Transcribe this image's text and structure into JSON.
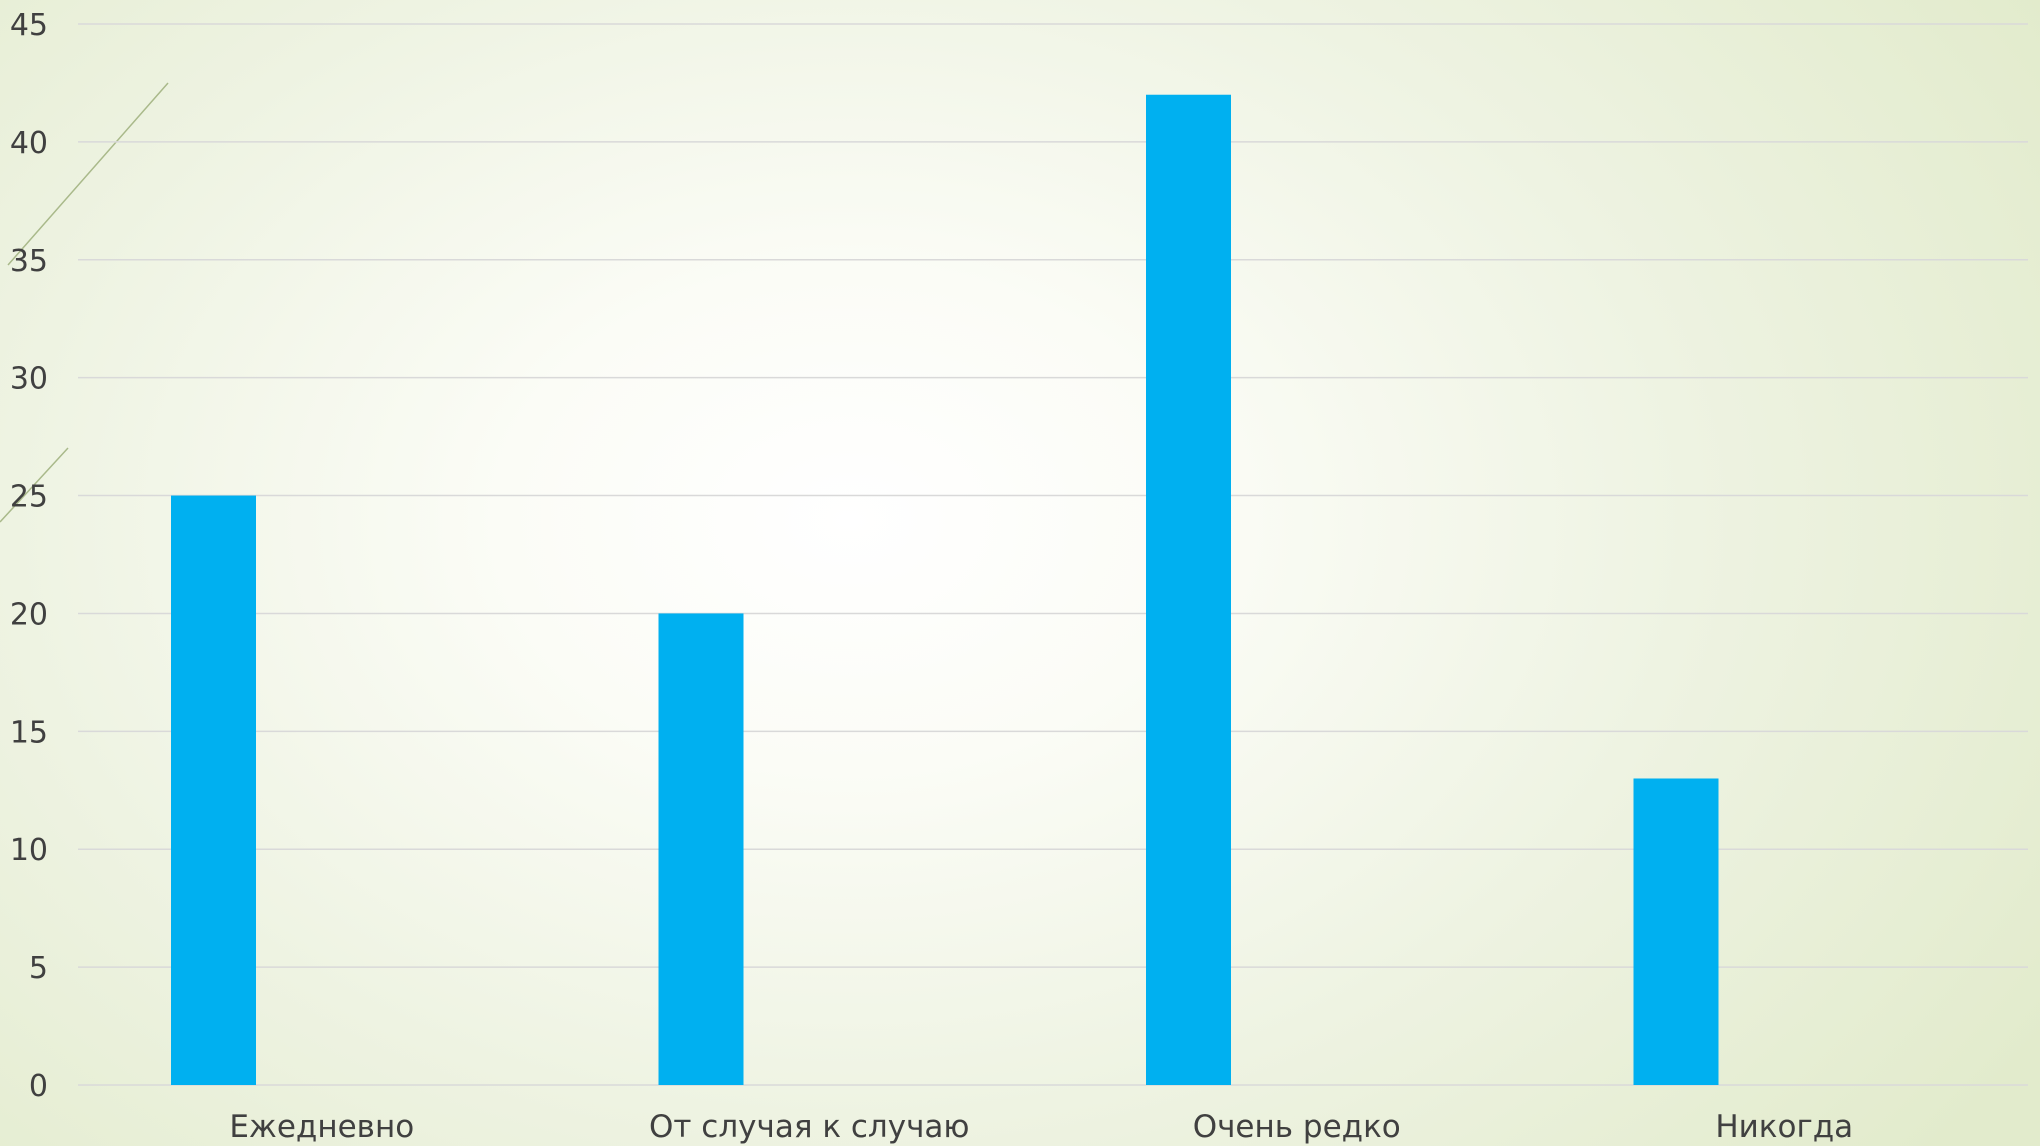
{
  "chart_data": {
    "type": "bar",
    "title": "",
    "xlabel": "",
    "ylabel": "",
    "categories": [
      "Ежедневно",
      "От случая к случаю",
      "Очень редко",
      "Никогда"
    ],
    "series": [
      {
        "values": [
          25,
          20,
          42,
          13
        ]
      }
    ],
    "ylim": [
      0,
      45
    ],
    "yticks": [
      "0",
      "5",
      "10",
      "15",
      "20",
      "25",
      "30",
      "35",
      "40",
      "45"
    ],
    "grid": true,
    "legend": "none",
    "colors": {
      "bar": "#00b0f0",
      "grid": "#d9d9d9",
      "text": "#404040",
      "decor_line": "#a9b98a"
    }
  }
}
